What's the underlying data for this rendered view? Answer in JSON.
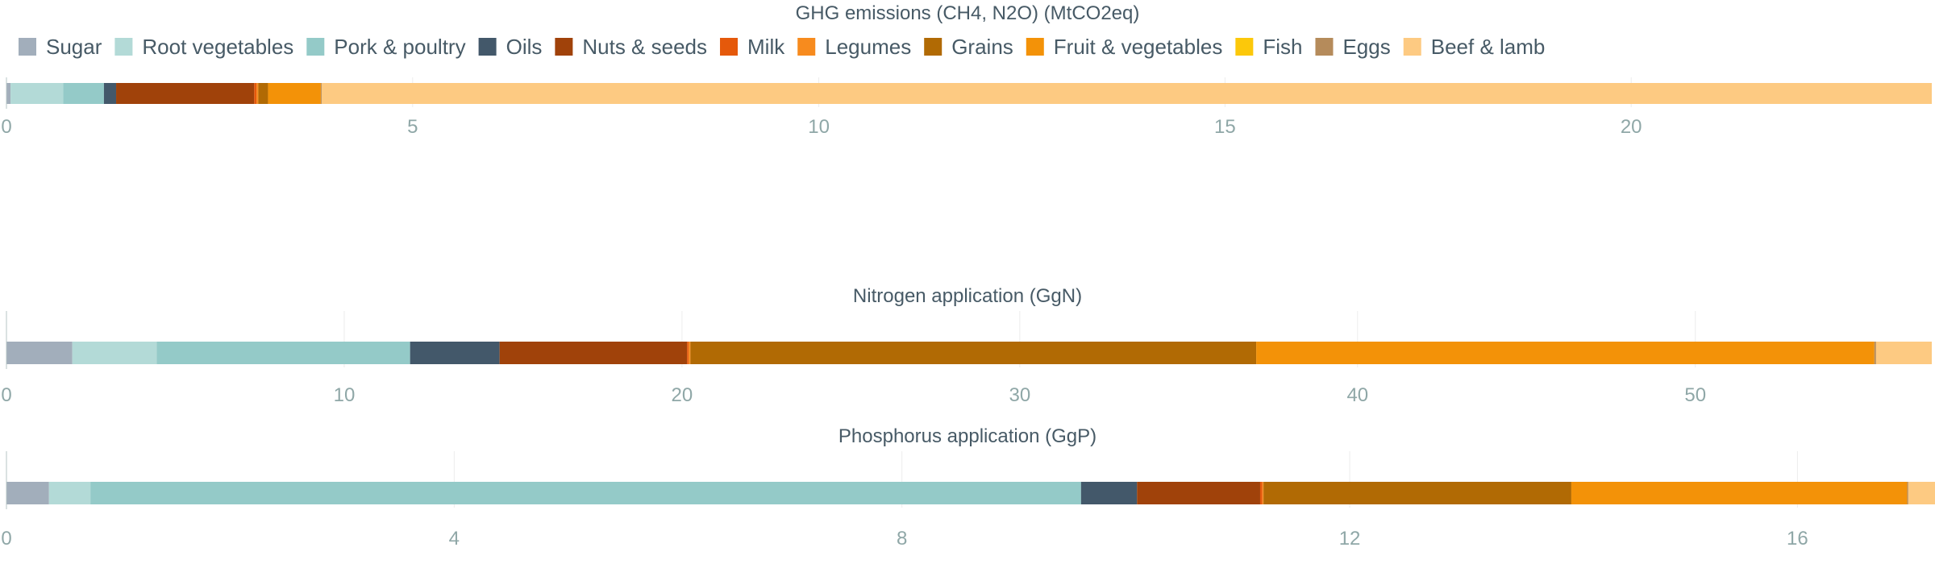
{
  "legend": {
    "position": "top-left",
    "items": [
      {
        "name": "Sugar",
        "color": "#a2aebb"
      },
      {
        "name": "Root vegetables",
        "color": "#b3dad7"
      },
      {
        "name": "Pork & poultry",
        "color": "#94cac8"
      },
      {
        "name": "Oils",
        "color": "#43586a"
      },
      {
        "name": "Nuts & seeds",
        "color": "#a0420a"
      },
      {
        "name": "Milk",
        "color": "#e5590b"
      },
      {
        "name": "Legumes",
        "color": "#f78b1e"
      },
      {
        "name": "Grains",
        "color": "#b16a04"
      },
      {
        "name": "Fruit & vegetables",
        "color": "#f39208"
      },
      {
        "name": "Fish",
        "color": "#fcc80a"
      },
      {
        "name": "Eggs",
        "color": "#b58b5b"
      },
      {
        "name": "Beef & lamb",
        "color": "#fdca82"
      }
    ]
  },
  "chart_data": [
    {
      "type": "bar",
      "orientation": "horizontal",
      "stacked": true,
      "title": "GHG emissions (CH4, N2O) (MtCO2eq)",
      "xlim": [
        0,
        23.7
      ],
      "ticks": [
        0,
        5,
        10,
        15,
        20
      ],
      "grid": true,
      "segments": [
        {
          "name": "Sugar",
          "value": 0.05
        },
        {
          "name": "Root vegetables",
          "value": 0.65
        },
        {
          "name": "Pork & poultry",
          "value": 0.5
        },
        {
          "name": "Oils",
          "value": 0.15
        },
        {
          "name": "Nuts & seeds",
          "value": 1.7
        },
        {
          "name": "Milk",
          "value": 0.03
        },
        {
          "name": "Legumes",
          "value": 0.02
        },
        {
          "name": "Grains",
          "value": 0.12
        },
        {
          "name": "Fruit & vegetables",
          "value": 0.65
        },
        {
          "name": "Fish",
          "value": 0.0
        },
        {
          "name": "Eggs",
          "value": 0.01
        },
        {
          "name": "Beef & lamb",
          "value": 19.82
        }
      ]
    },
    {
      "type": "bar",
      "orientation": "horizontal",
      "stacked": true,
      "title": "Nitrogen application (GgN)",
      "xlim": [
        0,
        57
      ],
      "ticks": [
        0,
        10,
        20,
        30,
        40,
        50
      ],
      "grid": true,
      "segments": [
        {
          "name": "Sugar",
          "value": 1.95
        },
        {
          "name": "Root vegetables",
          "value": 2.5
        },
        {
          "name": "Pork & poultry",
          "value": 7.5
        },
        {
          "name": "Oils",
          "value": 2.65
        },
        {
          "name": "Nuts & seeds",
          "value": 5.55
        },
        {
          "name": "Milk",
          "value": 0.05
        },
        {
          "name": "Legumes",
          "value": 0.05
        },
        {
          "name": "Grains",
          "value": 16.75
        },
        {
          "name": "Fruit & vegetables",
          "value": 18.3
        },
        {
          "name": "Fish",
          "value": 0.0
        },
        {
          "name": "Eggs",
          "value": 0.05
        },
        {
          "name": "Beef & lamb",
          "value": 1.65
        }
      ]
    },
    {
      "type": "bar",
      "orientation": "horizontal",
      "stacked": true,
      "title": "Phosphorus application (GgP)",
      "xlim": [
        0,
        17.2
      ],
      "ticks": [
        0,
        4,
        8,
        12,
        16
      ],
      "grid": true,
      "segments": [
        {
          "name": "Sugar",
          "value": 0.38
        },
        {
          "name": "Root vegetables",
          "value": 0.37
        },
        {
          "name": "Pork & poultry",
          "value": 8.85
        },
        {
          "name": "Oils",
          "value": 0.5
        },
        {
          "name": "Nuts & seeds",
          "value": 1.1
        },
        {
          "name": "Milk",
          "value": 0.02
        },
        {
          "name": "Legumes",
          "value": 0.01
        },
        {
          "name": "Grains",
          "value": 2.75
        },
        {
          "name": "Fruit & vegetables",
          "value": 3.0
        },
        {
          "name": "Fish",
          "value": 0.0
        },
        {
          "name": "Eggs",
          "value": 0.01
        },
        {
          "name": "Beef & lamb",
          "value": 0.26
        }
      ]
    }
  ]
}
